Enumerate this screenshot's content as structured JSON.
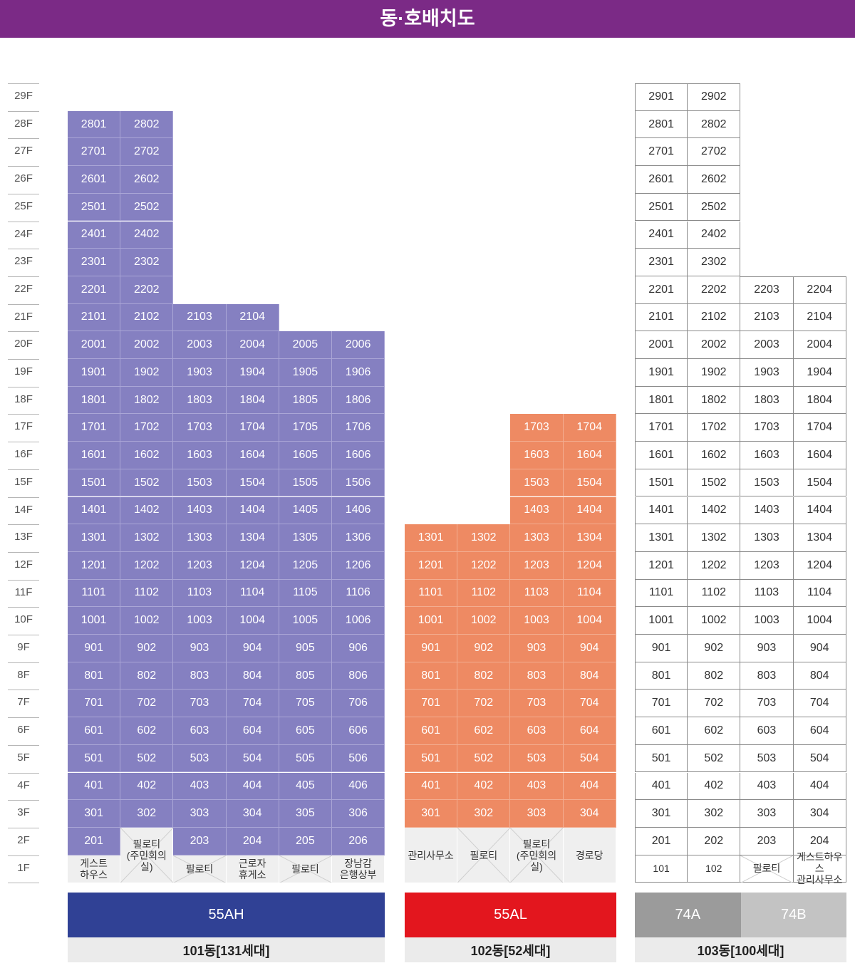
{
  "title": "동·호배치도",
  "floors": [
    "29F",
    "28F",
    "27F",
    "26F",
    "25F",
    "24F",
    "23F",
    "22F",
    "21F",
    "20F",
    "19F",
    "18F",
    "17F",
    "16F",
    "15F",
    "14F",
    "13F",
    "12F",
    "11F",
    "10F",
    "9F",
    "8F",
    "7F",
    "6F",
    "5F",
    "4F",
    "3F",
    "2F",
    "1F"
  ],
  "colors": {
    "title_bar": "#7b2a86",
    "b101_units": "#8580c1",
    "b102_units": "#ee8a63",
    "b103_units": "#ffffff",
    "ground_floor": "#efefef"
  },
  "buildings": [
    {
      "id": "b101",
      "name": "101동[131세대]",
      "types": [
        {
          "label": "55AH",
          "color": "#304195"
        }
      ],
      "columns": [
        {
          "line": "01",
          "top_floor": 28,
          "floor2": "201",
          "floor1": "게스트\n하우스"
        },
        {
          "line": "02",
          "top_floor": 28,
          "floor2": "",
          "floor1": "",
          "merged": "필로티\n(주민회의실)"
        },
        {
          "line": "03",
          "top_floor": 21,
          "floor2": "203",
          "floor1": "필로티",
          "crossed": true
        },
        {
          "line": "04",
          "top_floor": 21,
          "floor2": "204",
          "floor1": "근로자\n휴게소"
        },
        {
          "line": "05",
          "top_floor": 20,
          "floor2": "205",
          "floor1": "필로티",
          "crossed": true
        },
        {
          "line": "06",
          "top_floor": 20,
          "floor2": "206",
          "floor1": "장남감\n은행상부"
        }
      ]
    },
    {
      "id": "b102",
      "name": "102동[52세대]",
      "types": [
        {
          "label": "55AL",
          "color": "#e3161e"
        }
      ],
      "columns": [
        {
          "line": "01",
          "top_floor": 13,
          "merged": "관리사무소"
        },
        {
          "line": "02",
          "top_floor": 13,
          "merged": "필로티",
          "crossed": true
        },
        {
          "line": "03",
          "top_floor": 17,
          "merged": "필로티\n(주민회의실)",
          "crossed": true
        },
        {
          "line": "04",
          "top_floor": 17,
          "merged": "경로당"
        }
      ]
    },
    {
      "id": "b103",
      "name": "103동[100세대]",
      "types": [
        {
          "label": "74A",
          "color": "#9b9b9b"
        },
        {
          "label": "74B",
          "color": "#c3c3c3"
        }
      ],
      "columns": [
        {
          "line": "01",
          "top_floor": 29,
          "floor2": "201",
          "floor1": "101"
        },
        {
          "line": "02",
          "top_floor": 29,
          "floor2": "202",
          "floor1": "102"
        },
        {
          "line": "03",
          "top_floor": 22,
          "floor2": "203",
          "floor1": "필로티",
          "crossed": true
        },
        {
          "line": "04",
          "top_floor": 22,
          "floor2": "204",
          "floor1": "게스트하우스\n관리사무소"
        }
      ]
    }
  ]
}
